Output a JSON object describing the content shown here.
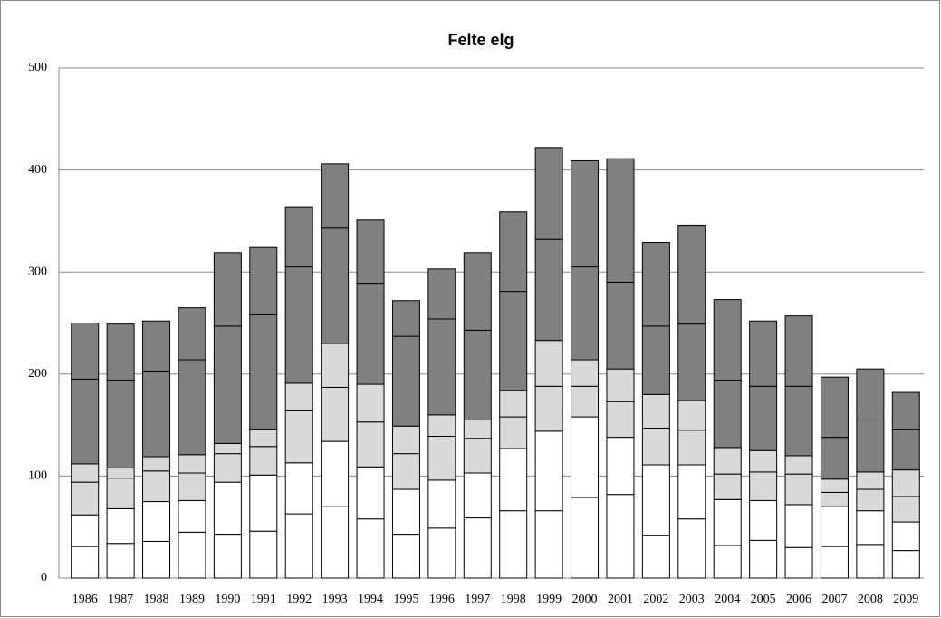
{
  "chart_data": {
    "type": "stacked_bar",
    "title": "Felte elg",
    "categories": [
      "1986",
      "1987",
      "1988",
      "1989",
      "1990",
      "1991",
      "1992",
      "1993",
      "1994",
      "1995",
      "1996",
      "1997",
      "1998",
      "1999",
      "2000",
      "2001",
      "2002",
      "2003",
      "2004",
      "2005",
      "2006",
      "2007",
      "2008",
      "2009"
    ],
    "series": [
      {
        "color": "#ffffff",
        "values": [
          31,
          34,
          36,
          45,
          43,
          46,
          63,
          70,
          58,
          43,
          49,
          59,
          66,
          66,
          79,
          82,
          42,
          58,
          32,
          37,
          30,
          31,
          33,
          27
        ]
      },
      {
        "color": "#ffffff",
        "values": [
          31,
          34,
          39,
          31,
          51,
          55,
          50,
          64,
          51,
          44,
          47,
          44,
          61,
          78,
          79,
          56,
          69,
          53,
          45,
          39,
          42,
          39,
          33,
          28
        ]
      },
      {
        "color": "#d9d9d9",
        "values": [
          32,
          30,
          30,
          27,
          28,
          28,
          51,
          53,
          44,
          35,
          43,
          34,
          31,
          44,
          30,
          35,
          36,
          34,
          25,
          28,
          30,
          14,
          21,
          25
        ]
      },
      {
        "color": "#d9d9d9",
        "values": [
          18,
          10,
          14,
          18,
          10,
          17,
          27,
          43,
          37,
          27,
          21,
          18,
          26,
          45,
          26,
          32,
          33,
          29,
          26,
          21,
          18,
          13,
          17,
          26
        ]
      },
      {
        "color": "#808080",
        "values": [
          83,
          86,
          84,
          93,
          115,
          112,
          114,
          113,
          99,
          88,
          94,
          88,
          97,
          99,
          91,
          85,
          67,
          75,
          66,
          63,
          68,
          41,
          51,
          40
        ]
      },
      {
        "color": "#808080",
        "values": [
          55,
          55,
          49,
          51,
          72,
          66,
          59,
          63,
          62,
          35,
          49,
          76,
          78,
          90,
          104,
          121,
          82,
          97,
          79,
          64,
          69,
          59,
          50,
          36
        ]
      }
    ],
    "ylim": [
      0,
      500
    ],
    "yticks": [
      0,
      100,
      200,
      300,
      400,
      500
    ],
    "grid": true
  }
}
